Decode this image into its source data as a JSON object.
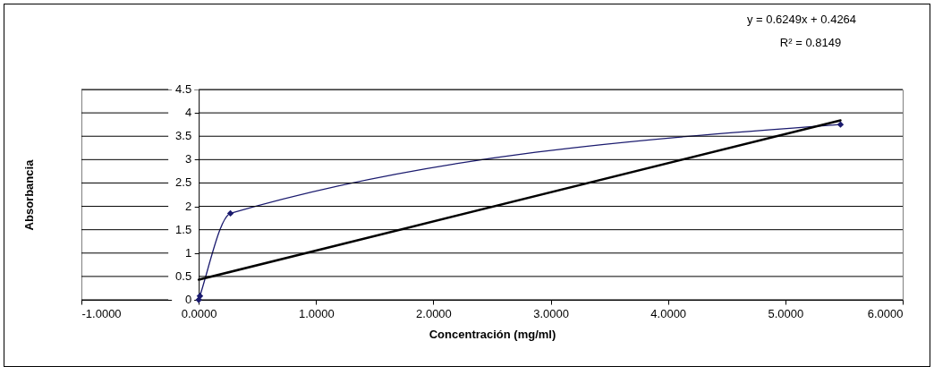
{
  "chart_data": {
    "type": "line",
    "xlabel": "Concentración (mg/ml)",
    "ylabel": "Absorbancia",
    "annotations": [
      "y = 0.6249x + 0.4264",
      "R² = 0.8149"
    ],
    "xlim": [
      -1,
      6
    ],
    "xticks": [
      {
        "value": -1,
        "label": "-1.0000"
      },
      {
        "value": 0,
        "label": "0.0000"
      },
      {
        "value": 1,
        "label": "1.0000"
      },
      {
        "value": 2,
        "label": "2.0000"
      },
      {
        "value": 3,
        "label": "3.0000"
      },
      {
        "value": 4,
        "label": "4.0000"
      },
      {
        "value": 5,
        "label": "5.0000"
      },
      {
        "value": 6,
        "label": "6.0000"
      }
    ],
    "ylim": [
      0,
      4.5
    ],
    "yticks": [
      0,
      0.5,
      1,
      1.5,
      2,
      2.5,
      3,
      3.5,
      4,
      4.5
    ],
    "grid": "y",
    "marker": "diamond",
    "series": [
      {
        "color": "#1a1a6e",
        "x": [
          0,
          0.01,
          0.27,
          5.47
        ],
        "values": [
          0,
          0.08,
          1.85,
          3.75
        ]
      },
      {
        "color": "#000000",
        "marker": "none",
        "x": [
          0,
          5.47
        ],
        "values": [
          0.43,
          3.84
        ]
      }
    ]
  }
}
